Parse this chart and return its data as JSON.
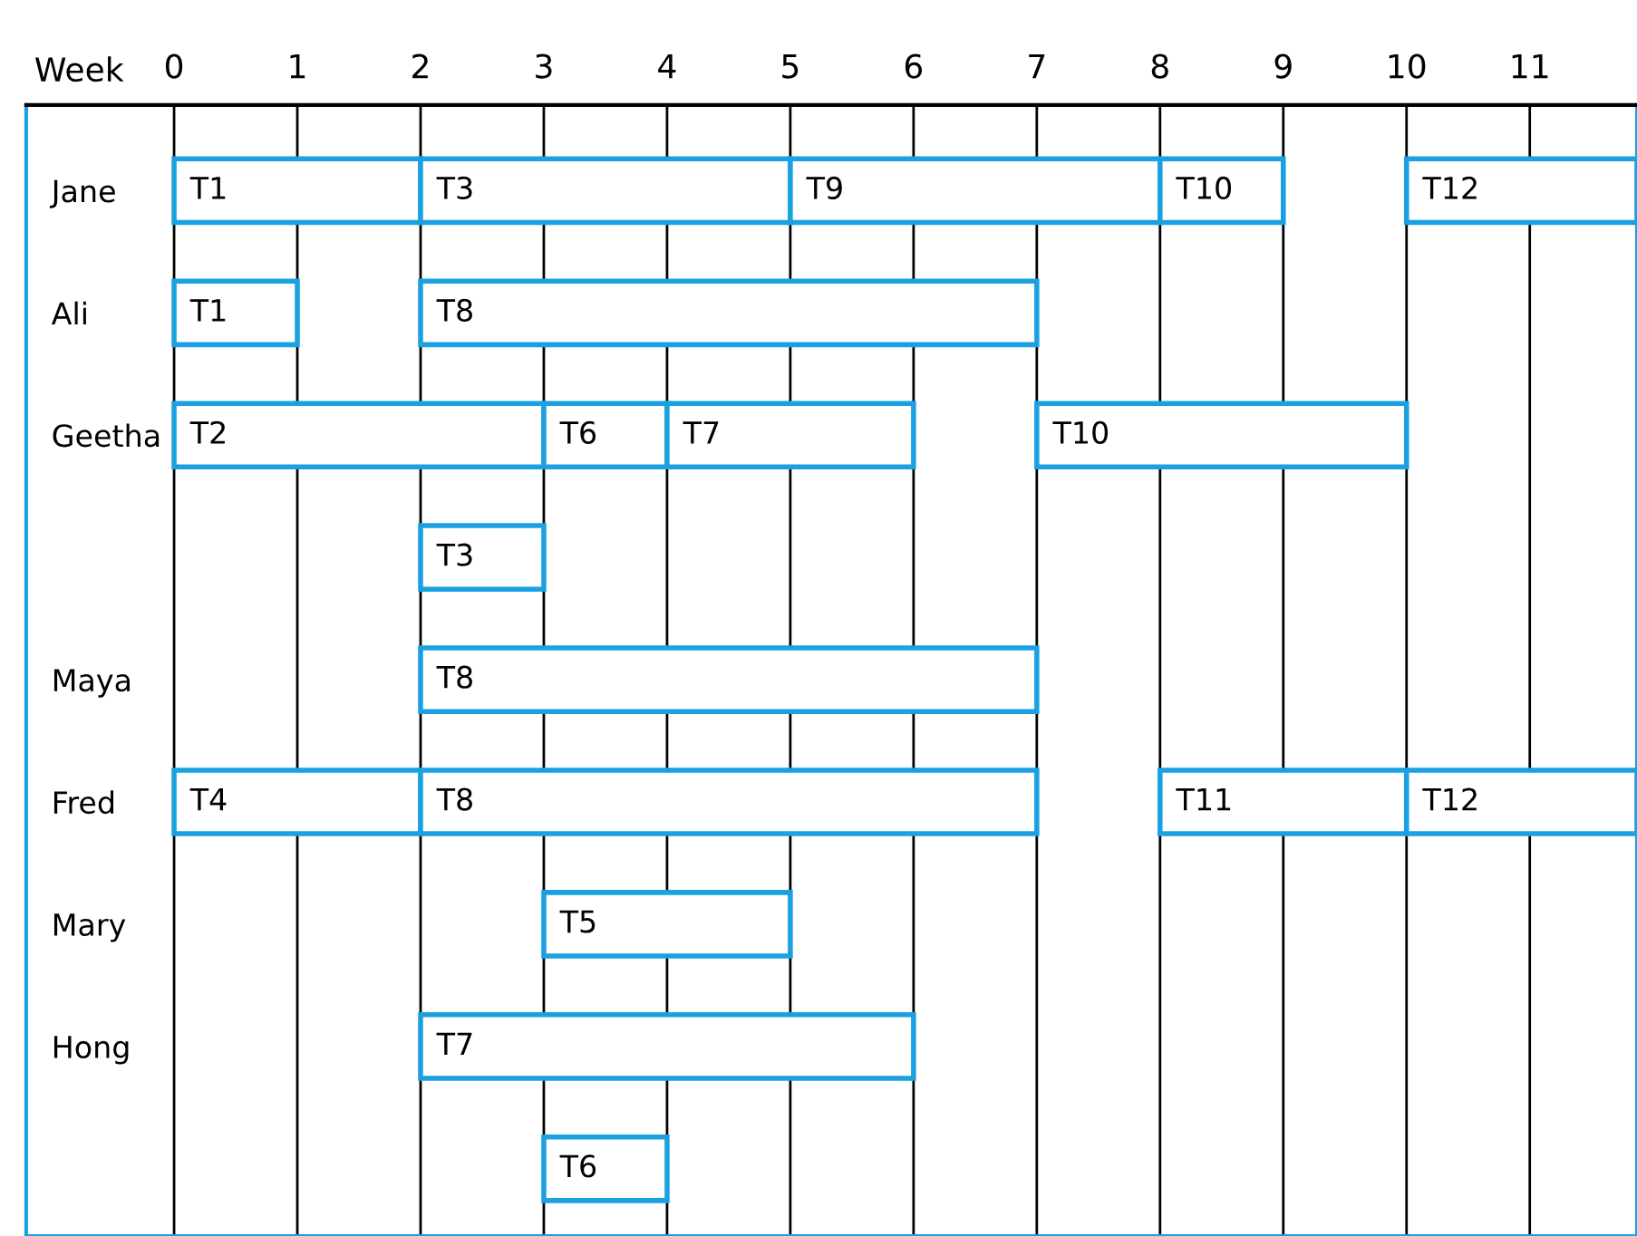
{
  "chart_data": {
    "type": "bar",
    "orientation": "horizontal",
    "xlabel": "Week",
    "categories": [
      "Jane",
      "Ali",
      "Geetha",
      null,
      "Maya",
      "Fred",
      "Mary",
      "Hong",
      null
    ],
    "xlim": [
      -1.2,
      11.87
    ],
    "xticks": [
      0,
      1,
      2,
      3,
      4,
      5,
      6,
      7,
      8,
      9,
      10,
      11
    ],
    "grid": "x",
    "legend": false,
    "series": [
      {
        "name": "T1",
        "color": "#1ba1e2",
        "values": [
          2,
          1,
          null,
          null,
          null,
          null,
          null,
          null,
          null
        ],
        "base": [
          0,
          0,
          null,
          null,
          null,
          null,
          null,
          null,
          null
        ]
      },
      {
        "name": "T2",
        "color": "#1ba1e2",
        "values": [
          null,
          null,
          3,
          null,
          null,
          null,
          null,
          null,
          null
        ],
        "base": [
          null,
          null,
          0,
          null,
          null,
          null,
          null,
          null,
          null
        ]
      },
      {
        "name": "T3",
        "color": "#1ba1e2",
        "values": [
          3,
          null,
          null,
          1,
          null,
          null,
          null,
          null,
          null
        ],
        "base": [
          2,
          null,
          null,
          2,
          null,
          null,
          null,
          null,
          null
        ]
      },
      {
        "name": "T4",
        "color": "#1ba1e2",
        "values": [
          null,
          null,
          null,
          null,
          null,
          2,
          null,
          null,
          null
        ],
        "base": [
          null,
          null,
          null,
          null,
          null,
          0,
          null,
          null,
          null
        ]
      },
      {
        "name": "T5",
        "color": "#1ba1e2",
        "values": [
          null,
          null,
          null,
          null,
          null,
          null,
          2,
          null,
          null
        ],
        "base": [
          null,
          null,
          null,
          null,
          null,
          null,
          3,
          null,
          null
        ]
      },
      {
        "name": "T6",
        "color": "#1ba1e2",
        "values": [
          null,
          null,
          1,
          null,
          null,
          null,
          null,
          null,
          1
        ],
        "base": [
          null,
          null,
          3,
          null,
          null,
          null,
          null,
          null,
          3
        ]
      },
      {
        "name": "T7",
        "color": "#1ba1e2",
        "values": [
          null,
          null,
          2,
          null,
          null,
          null,
          null,
          4,
          null
        ],
        "base": [
          null,
          null,
          4,
          null,
          null,
          null,
          null,
          2,
          null
        ]
      },
      {
        "name": "T8",
        "color": "#1ba1e2",
        "values": [
          null,
          5,
          null,
          null,
          5,
          5,
          null,
          null,
          null
        ],
        "base": [
          null,
          2,
          null,
          null,
          2,
          2,
          null,
          null,
          null
        ]
      },
      {
        "name": "T9",
        "color": "#1ba1e2",
        "values": [
          3,
          null,
          null,
          null,
          null,
          null,
          null,
          null,
          null
        ],
        "base": [
          5,
          null,
          null,
          null,
          null,
          null,
          null,
          null,
          null
        ]
      },
      {
        "name": "T10",
        "color": "#1ba1e2",
        "values": [
          1,
          null,
          3,
          null,
          null,
          null,
          null,
          null,
          null
        ],
        "base": [
          8,
          null,
          7,
          null,
          null,
          null,
          null,
          null,
          null
        ]
      },
      {
        "name": "T11",
        "color": "#1ba1e2",
        "values": [
          null,
          null,
          null,
          null,
          null,
          2,
          null,
          null,
          null
        ],
        "base": [
          null,
          null,
          null,
          null,
          null,
          8,
          null,
          null,
          null
        ]
      },
      {
        "name": "T12",
        "color": "#1ba1e2",
        "values": [
          1.87,
          null,
          null,
          null,
          null,
          1.87,
          null,
          null,
          null
        ],
        "base": [
          10,
          null,
          null,
          null,
          null,
          10,
          null,
          null,
          null
        ]
      }
    ]
  }
}
